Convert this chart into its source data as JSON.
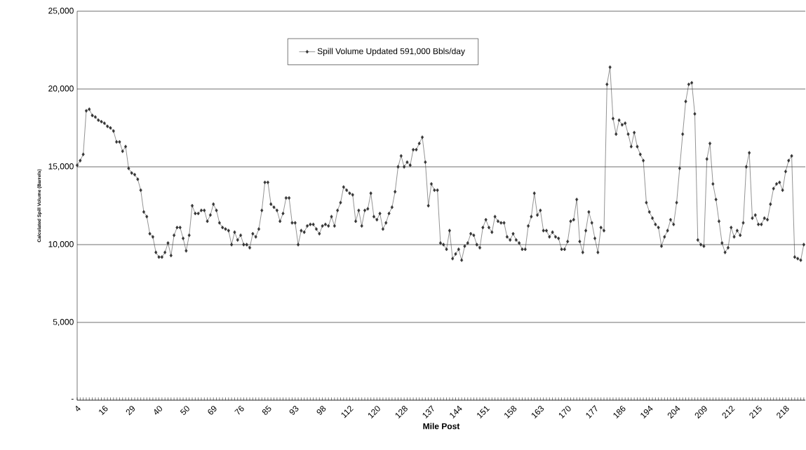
{
  "chart_data": {
    "type": "line",
    "xlabel": "Mile Post",
    "ylabel": "Calculated Spill Volume (Barrels)",
    "categories": [
      "4",
      null,
      null,
      null,
      null,
      null,
      null,
      null,
      null,
      "16",
      null,
      null,
      null,
      null,
      null,
      null,
      null,
      null,
      "29",
      null,
      null,
      null,
      null,
      null,
      null,
      null,
      null,
      "40",
      null,
      null,
      null,
      null,
      null,
      null,
      null,
      null,
      "50",
      null,
      null,
      null,
      null,
      null,
      null,
      null,
      null,
      "69",
      null,
      null,
      null,
      null,
      null,
      null,
      null,
      null,
      "76",
      null,
      null,
      null,
      null,
      null,
      null,
      null,
      null,
      "85",
      null,
      null,
      null,
      null,
      null,
      null,
      null,
      null,
      "93",
      null,
      null,
      null,
      null,
      null,
      null,
      null,
      null,
      "98",
      null,
      null,
      null,
      null,
      null,
      null,
      null,
      null,
      "112",
      null,
      null,
      null,
      null,
      null,
      null,
      null,
      null,
      "120",
      null,
      null,
      null,
      null,
      null,
      null,
      null,
      null,
      "128",
      null,
      null,
      null,
      null,
      null,
      null,
      null,
      null,
      "137",
      null,
      null,
      null,
      null,
      null,
      null,
      null,
      null,
      "144",
      null,
      null,
      null,
      null,
      null,
      null,
      null,
      null,
      "151",
      null,
      null,
      null,
      null,
      null,
      null,
      null,
      null,
      "158",
      null,
      null,
      null,
      null,
      null,
      null,
      null,
      null,
      "163",
      null,
      null,
      null,
      null,
      null,
      null,
      null,
      null,
      "170",
      null,
      null,
      null,
      null,
      null,
      null,
      null,
      null,
      "177",
      null,
      null,
      null,
      null,
      null,
      null,
      null,
      null,
      "186",
      null,
      null,
      null,
      null,
      null,
      null,
      null,
      null,
      "194",
      null,
      null,
      null,
      null,
      null,
      null,
      null,
      null,
      "204",
      null,
      null,
      null,
      null,
      null,
      null,
      null,
      null,
      "209",
      null,
      null,
      null,
      null,
      null,
      null,
      null,
      null,
      "212",
      null,
      null,
      null,
      null,
      null,
      null,
      null,
      null,
      "215",
      null,
      null,
      null,
      null,
      null,
      null,
      null,
      null,
      "218",
      null,
      null,
      null,
      null,
      null,
      null
    ],
    "series": [
      {
        "name": "Spill Volume Updated 591,000 Bbls/day",
        "color": "#333333",
        "values": [
          15100,
          15400,
          15800,
          18600,
          18700,
          18300,
          18200,
          18000,
          17900,
          17800,
          17600,
          17500,
          17300,
          16600,
          16600,
          16000,
          16300,
          14900,
          14600,
          14500,
          14200,
          13500,
          12100,
          11800,
          10700,
          10500,
          9500,
          9200,
          9200,
          9500,
          10100,
          9300,
          10600,
          11100,
          11100,
          10400,
          9600,
          10600,
          12500,
          12000,
          12000,
          12200,
          12200,
          11500,
          11900,
          12600,
          12200,
          11400,
          11100,
          11000,
          10900,
          10000,
          10800,
          10300,
          10600,
          10000,
          10000,
          9800,
          10700,
          10500,
          11000,
          12200,
          14000,
          14000,
          12600,
          12400,
          12200,
          11500,
          12000,
          13000,
          13000,
          11400,
          11400,
          10000,
          10900,
          10800,
          11200,
          11300,
          11300,
          11000,
          10700,
          11200,
          11300,
          11200,
          11800,
          11200,
          12200,
          12700,
          13700,
          13500,
          13300,
          13200,
          11500,
          12200,
          11200,
          12200,
          12300,
          13300,
          11800,
          11600,
          12000,
          11000,
          11400,
          12000,
          12400,
          13400,
          15000,
          15700,
          15000,
          15300,
          15100,
          16100,
          16100,
          16500,
          16900,
          15300,
          12500,
          13900,
          13500,
          13500,
          10100,
          10000,
          9700,
          10900,
          9100,
          9400,
          9700,
          9000,
          9900,
          10100,
          10700,
          10600,
          10000,
          9800,
          11100,
          11600,
          11100,
          10800,
          11800,
          11500,
          11400,
          11400,
          10500,
          10300,
          10700,
          10300,
          10100,
          9700,
          9700,
          11200,
          11800,
          13300,
          11900,
          12200,
          10900,
          10900,
          10500,
          10800,
          10500,
          10400,
          9700,
          9700,
          10200,
          11500,
          11600,
          12900,
          10200,
          9500,
          10900,
          12100,
          11400,
          10400,
          9500,
          11100,
          10900,
          20300,
          21400,
          18100,
          17100,
          18000,
          17700,
          17800,
          17100,
          16300,
          17200,
          16300,
          15800,
          15400,
          12700,
          12100,
          11700,
          11300,
          11100,
          9900,
          10500,
          10900,
          11600,
          11300,
          12700,
          14900,
          17100,
          19200,
          20300,
          20400,
          18400,
          10300,
          10000,
          9900,
          15500,
          16500,
          13900,
          12900,
          11500,
          10100,
          9500,
          9800,
          11100,
          10500,
          10900,
          10600,
          11400,
          15000,
          15900,
          11700,
          11900,
          11300,
          11300,
          11700,
          11600,
          12600,
          13600,
          13900,
          14000,
          13500,
          14700,
          15400,
          15700,
          9200,
          9100,
          9000,
          10000
        ]
      }
    ],
    "ylim": [
      0,
      25000
    ],
    "yticks": [
      {
        "value": 0,
        "label": "-"
      },
      {
        "value": 5000,
        "label": "5,000"
      },
      {
        "value": 10000,
        "label": "10,000"
      },
      {
        "value": 15000,
        "label": "15,000"
      },
      {
        "value": 20000,
        "label": "20,000"
      },
      {
        "value": 25000,
        "label": "25,000"
      }
    ],
    "grid": "y",
    "legend": "top",
    "marker": "diamond",
    "line_style": "solid"
  }
}
